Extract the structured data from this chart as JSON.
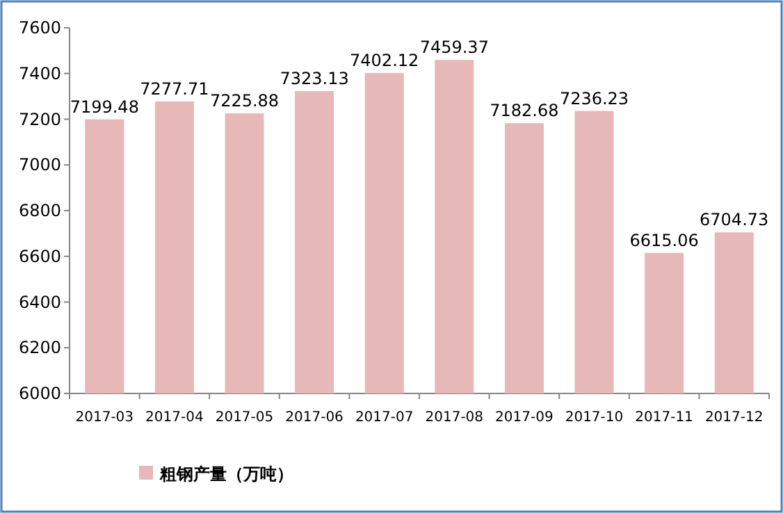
{
  "chart_data": {
    "type": "bar",
    "categories": [
      "2017-03",
      "2017-04",
      "2017-05",
      "2017-06",
      "2017-07",
      "2017-08",
      "2017-09",
      "2017-10",
      "2017-11",
      "2017-12"
    ],
    "series": [
      {
        "name": "粗钢产量（万吨）",
        "color": "#e6b8b7",
        "values": [
          7199.48,
          7277.71,
          7225.88,
          7323.13,
          7402.12,
          7459.37,
          7182.68,
          7236.23,
          6615.06,
          6704.73
        ]
      }
    ],
    "ylim": [
      6000,
      7600
    ],
    "yticks": [
      6000,
      6200,
      6400,
      6600,
      6800,
      7000,
      7200,
      7400,
      7600
    ],
    "data_labels": true,
    "legend": "bottom",
    "grid": false
  }
}
